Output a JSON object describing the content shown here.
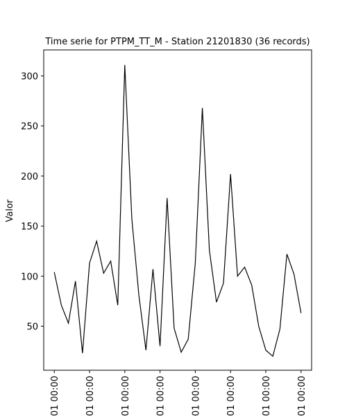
{
  "chart_data": {
    "type": "line",
    "title": "Time serie for PTPM_TT_M - Station 21201830 (36 records)",
    "xlabel": "",
    "ylabel": "Valor",
    "x_tick_labels": [
      "01 00:00",
      "01 00:00",
      "01 00:00",
      "01 00:00",
      "01 00:00",
      "01 00:00",
      "01 00:00",
      "01 00:00"
    ],
    "x_tick_positions": [
      0,
      5,
      10,
      15,
      20,
      25,
      30,
      35
    ],
    "y_ticks": [
      50,
      100,
      150,
      200,
      250,
      300
    ],
    "xlim": [
      -1.5,
      36.5
    ],
    "ylim": [
      6,
      326
    ],
    "grid": false,
    "line_color": "#000000",
    "series": [
      {
        "x": [
          0,
          1,
          2,
          3,
          4,
          5,
          6,
          7,
          8,
          9,
          10,
          11,
          12,
          13,
          14,
          15,
          16,
          17,
          18,
          19,
          20,
          21,
          22,
          23,
          24,
          25,
          26,
          27,
          28,
          29,
          30,
          31,
          32,
          33,
          34,
          35
        ],
        "values": [
          104,
          71,
          53,
          95,
          23,
          113,
          135,
          103,
          115,
          71,
          311,
          157,
          81,
          26,
          107,
          30,
          178,
          48,
          24,
          37,
          113,
          268,
          126,
          74,
          93,
          202,
          100,
          109,
          91,
          50,
          26,
          20,
          47,
          122,
          102,
          63
        ]
      }
    ]
  }
}
